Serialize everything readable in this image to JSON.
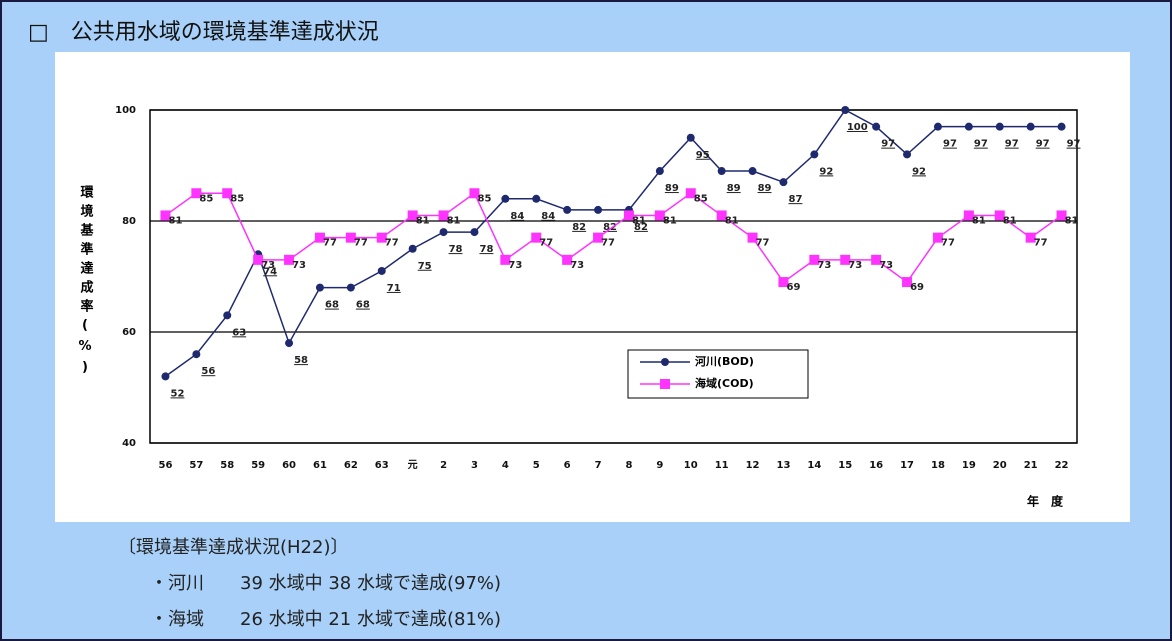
{
  "title": "□　公共用水域の環境基準達成状況",
  "chart_data": {
    "type": "line",
    "categories": [
      "56",
      "57",
      "58",
      "59",
      "60",
      "61",
      "62",
      "63",
      "元",
      "2",
      "3",
      "4",
      "5",
      "6",
      "7",
      "8",
      "9",
      "10",
      "11",
      "12",
      "13",
      "14",
      "15",
      "16",
      "17",
      "18",
      "19",
      "20",
      "21",
      "22"
    ],
    "series": [
      {
        "name": "河川(BOD)",
        "color": "#1f2a6e",
        "marker": "circle",
        "values": [
          52,
          56,
          63,
          74,
          58,
          68,
          68,
          71,
          75,
          78,
          78,
          84,
          84,
          82,
          82,
          82,
          89,
          95,
          89,
          89,
          87,
          92,
          100,
          97,
          92,
          97,
          97,
          97,
          97,
          97
        ]
      },
      {
        "name": "海域(COD)",
        "color": "#ff33ff",
        "marker": "square",
        "values": [
          81,
          85,
          85,
          73,
          73,
          77,
          77,
          77,
          81,
          81,
          85,
          73,
          77,
          73,
          77,
          81,
          81,
          85,
          81,
          77,
          69,
          73,
          73,
          73,
          69,
          77,
          81,
          81,
          77,
          81
        ]
      }
    ],
    "ylim": [
      40,
      100
    ],
    "yticks": [
      40,
      60,
      80,
      100
    ],
    "grid": true,
    "y_label": "環境基準達成率(%)",
    "x_label": "年　度"
  },
  "notes": [
    "〔環境基準達成状況(H22)〕",
    "・河川　　39 水域中 38 水域で達成(97%)",
    "・海域　　26 水域中 21 水域で達成(81%)"
  ]
}
